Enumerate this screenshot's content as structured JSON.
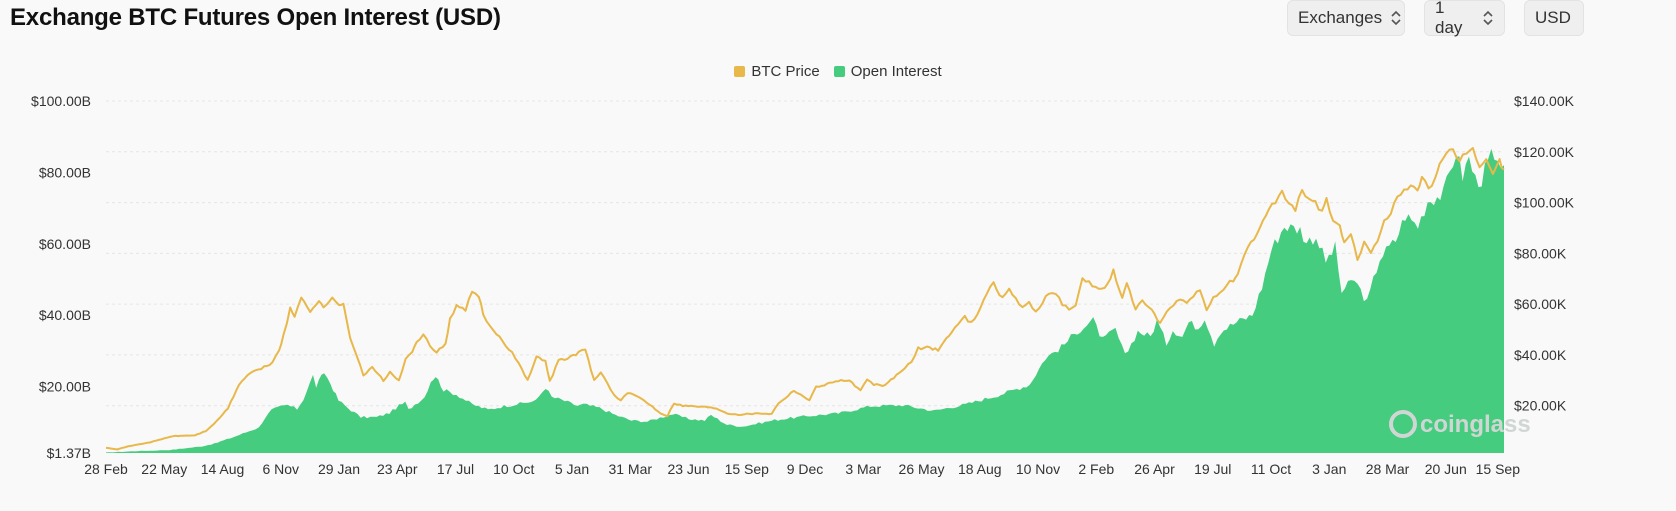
{
  "title": "Exchange BTC Futures Open Interest (USD)",
  "controls": {
    "exchanges_label": "Exchanges",
    "interval_label": "1 day",
    "currency_label": "USD"
  },
  "watermark": "coinglass",
  "colors": {
    "btc_price": "#e8b84a",
    "open_interest": "#45cc7f",
    "background": "#f9f9f9",
    "gridline": "#e6e6e6"
  },
  "icons": {
    "dropdown": "chevron-up-down-icon",
    "watermark": "coinglass-logo-icon"
  },
  "chart_data": {
    "type": "area",
    "title": "Exchange BTC Futures Open Interest (USD)",
    "legend": {
      "placement": "top-center",
      "entries": [
        "BTC Price",
        "Open Interest"
      ]
    },
    "grid": true,
    "x_tick_labels": [
      "28 Feb",
      "22 May",
      "14 Aug",
      "6 Nov",
      "29 Jan",
      "23 Apr",
      "17 Jul",
      "10 Oct",
      "5 Jan",
      "31 Mar",
      "23 Jun",
      "15 Sep",
      "9 Dec",
      "3 Mar",
      "26 May",
      "18 Aug",
      "10 Nov",
      "2 Feb",
      "26 Apr",
      "19 Jul",
      "11 Oct",
      "3 Jan",
      "28 Mar",
      "20 Jun",
      "15 Sep"
    ],
    "y_left": {
      "tick_values": [
        1.37,
        20,
        40,
        60,
        80,
        100
      ],
      "tick_labels": [
        "$1.37B",
        "$20.00B",
        "$40.00B",
        "$60.00B",
        "$80.00B",
        "$100.00B"
      ],
      "range": [
        1.37,
        100
      ]
    },
    "y_right": {
      "tick_values": [
        20,
        40,
        60,
        80,
        100,
        120,
        140
      ],
      "tick_labels": [
        "$20.00K",
        "$40.00K",
        "$60.00K",
        "$80.00K",
        "$100.00K",
        "$120.00K",
        "$140.00K"
      ],
      "range": [
        1.37,
        140
      ]
    },
    "series": [
      {
        "name": "Open Interest",
        "axis": "left",
        "style": "area",
        "points": [
          [
            0,
            1.5
          ],
          [
            1,
            1.9
          ],
          [
            2,
            2.2
          ],
          [
            3,
            3.2
          ],
          [
            3.4,
            4.0
          ],
          [
            4,
            5.8
          ],
          [
            4.5,
            7.5
          ],
          [
            4.8,
            8.5
          ],
          [
            5.0,
            11.3
          ],
          [
            5.2,
            13.4
          ],
          [
            5.5,
            14.4
          ],
          [
            5.7,
            14.8
          ],
          [
            6.0,
            13.7
          ],
          [
            6.2,
            16.5
          ],
          [
            6.5,
            23.0
          ],
          [
            6.6,
            20.0
          ],
          [
            6.85,
            24.0
          ],
          [
            7.05,
            20.8
          ],
          [
            7.3,
            16.1
          ],
          [
            7.6,
            14.0
          ],
          [
            8.0,
            11.4
          ],
          [
            8.5,
            11.4
          ],
          [
            8.9,
            12.6
          ],
          [
            9.2,
            14.6
          ],
          [
            9.4,
            15.5
          ],
          [
            9.5,
            13.5
          ],
          [
            9.7,
            15.0
          ],
          [
            10.0,
            17.0
          ],
          [
            10.2,
            21.5
          ],
          [
            10.35,
            23.0
          ],
          [
            10.6,
            19.0
          ],
          [
            11.0,
            17.8
          ],
          [
            11.5,
            15.0
          ],
          [
            12.0,
            13.5
          ],
          [
            12.5,
            14.5
          ],
          [
            13.0,
            15.2
          ],
          [
            13.5,
            16.0
          ],
          [
            13.8,
            19.8
          ],
          [
            14.0,
            17.0
          ],
          [
            14.3,
            16.3
          ],
          [
            14.8,
            14.6
          ],
          [
            15.0,
            15.0
          ],
          [
            15.5,
            14.0
          ],
          [
            16.0,
            12.0
          ],
          [
            16.5,
            10.5
          ],
          [
            17.0,
            10.2
          ],
          [
            17.8,
            12.3
          ],
          [
            18.3,
            10.9
          ],
          [
            18.8,
            10.5
          ],
          [
            19.0,
            12.0
          ],
          [
            19.5,
            9.3
          ],
          [
            20.0,
            8.8
          ],
          [
            21.0,
            10.6
          ],
          [
            22.0,
            11.7
          ],
          [
            23.0,
            12.5
          ],
          [
            24.0,
            14.5
          ],
          [
            25.0,
            14.8
          ],
          [
            26.0,
            13.2
          ],
          [
            27.0,
            15.0
          ],
          [
            28.0,
            17.5
          ],
          [
            28.5,
            19.0
          ],
          [
            29.0,
            20.5
          ],
          [
            29.5,
            28.0
          ],
          [
            30.0,
            31.0
          ],
          [
            30.5,
            35.5
          ],
          [
            31.0,
            38.5
          ],
          [
            31.3,
            33.0
          ],
          [
            31.7,
            36.0
          ],
          [
            32.0,
            28.5
          ],
          [
            32.4,
            35.5
          ],
          [
            32.8,
            34.0
          ],
          [
            33.0,
            38.5
          ],
          [
            33.3,
            32.0
          ],
          [
            33.5,
            36.0
          ],
          [
            33.8,
            34.0
          ],
          [
            34.0,
            38.0
          ],
          [
            34.3,
            36.5
          ],
          [
            34.5,
            39.5
          ],
          [
            34.8,
            32.0
          ],
          [
            35.0,
            35.5
          ],
          [
            35.5,
            38.0
          ],
          [
            36.0,
            40.0
          ],
          [
            36.3,
            48.0
          ],
          [
            36.6,
            58.5
          ],
          [
            37.0,
            65.0
          ],
          [
            37.5,
            64.0
          ],
          [
            37.7,
            60.5
          ],
          [
            38.0,
            62.0
          ],
          [
            38.3,
            55.0
          ],
          [
            38.6,
            59.0
          ],
          [
            38.8,
            46.5
          ],
          [
            39.2,
            50.0
          ],
          [
            39.6,
            43.5
          ],
          [
            40.0,
            56.0
          ],
          [
            40.5,
            61.0
          ],
          [
            40.8,
            68.0
          ],
          [
            41.2,
            65.0
          ],
          [
            41.5,
            72.0
          ],
          [
            42.0,
            74.0
          ],
          [
            42.4,
            86.0
          ],
          [
            42.6,
            79.0
          ],
          [
            42.8,
            84.0
          ],
          [
            43.0,
            78.0
          ],
          [
            43.2,
            78.0
          ],
          [
            43.5,
            85.0
          ],
          [
            43.8,
            79.0
          ],
          [
            43.9,
            82.0
          ]
        ]
      },
      {
        "name": "BTC Price",
        "axis": "right",
        "style": "line",
        "points": [
          [
            0,
            3.5
          ],
          [
            0.5,
            2.8
          ],
          [
            1,
            4.0
          ],
          [
            2,
            5.6
          ],
          [
            3,
            8.0
          ],
          [
            3.5,
            8.2
          ],
          [
            4,
            8.3
          ],
          [
            4.5,
            10.0
          ],
          [
            5,
            14.0
          ],
          [
            5.5,
            19.0
          ],
          [
            6,
            28.5
          ],
          [
            6.5,
            33.0
          ],
          [
            7,
            34.5
          ],
          [
            7.5,
            37.0
          ],
          [
            7.8,
            42.0
          ],
          [
            8,
            47.5
          ],
          [
            8.3,
            58.0
          ],
          [
            8.5,
            55.0
          ],
          [
            8.8,
            63.0
          ],
          [
            9.2,
            57.5
          ],
          [
            9.6,
            61.0
          ],
          [
            9.8,
            58.5
          ],
          [
            10.2,
            63.0
          ],
          [
            10.5,
            59.0
          ],
          [
            10.7,
            60.0
          ],
          [
            11.0,
            47.0
          ],
          [
            11.3,
            40.0
          ],
          [
            11.6,
            32.0
          ],
          [
            12.0,
            35.0
          ],
          [
            12.5,
            30.0
          ],
          [
            12.8,
            33.0
          ],
          [
            13.2,
            30.0
          ],
          [
            13.5,
            38.0
          ],
          [
            13.8,
            41.0
          ],
          [
            14.0,
            45.0
          ],
          [
            14.3,
            48.5
          ],
          [
            14.6,
            43.0
          ],
          [
            14.9,
            41.0
          ],
          [
            15.3,
            44.5
          ],
          [
            15.5,
            54.0
          ],
          [
            15.8,
            59.0
          ],
          [
            16.2,
            58.0
          ],
          [
            16.5,
            64.5
          ],
          [
            16.8,
            63.0
          ],
          [
            17.0,
            56.0
          ],
          [
            17.3,
            51.0
          ],
          [
            17.6,
            48.5
          ],
          [
            18.0,
            44.0
          ],
          [
            18.3,
            41.0
          ],
          [
            18.6,
            37.0
          ],
          [
            19.0,
            30.0
          ],
          [
            19.4,
            39.0
          ],
          [
            19.8,
            38.0
          ],
          [
            20.0,
            29.5
          ],
          [
            20.4,
            38.0
          ],
          [
            20.8,
            38.5
          ],
          [
            21.3,
            41.0
          ],
          [
            21.6,
            42.0
          ],
          [
            22.0,
            30.0
          ],
          [
            22.3,
            33.0
          ],
          [
            22.6,
            29.0
          ],
          [
            22.9,
            24.0
          ],
          [
            23.2,
            22.0
          ],
          [
            23.5,
            25.0
          ],
          [
            24.0,
            23.5
          ],
          [
            24.5,
            20.5
          ],
          [
            25.0,
            17.0
          ],
          [
            25.3,
            16.0
          ],
          [
            25.6,
            21.0
          ],
          [
            26.0,
            20.0
          ],
          [
            26.5,
            19.8
          ],
          [
            27.0,
            19.5
          ],
          [
            27.5,
            19.0
          ],
          [
            28.0,
            17.0
          ],
          [
            28.5,
            16.5
          ],
          [
            29.0,
            16.8
          ],
          [
            29.5,
            17.0
          ],
          [
            30.0,
            16.8
          ],
          [
            30.3,
            21.0
          ],
          [
            30.6,
            23.0
          ],
          [
            31.0,
            26.0
          ],
          [
            31.3,
            24.5
          ],
          [
            31.7,
            22.0
          ],
          [
            32.0,
            27.5
          ],
          [
            32.5,
            28.5
          ],
          [
            33.0,
            30.0
          ],
          [
            33.5,
            29.8
          ],
          [
            34.0,
            26.0
          ],
          [
            34.3,
            30.0
          ],
          [
            34.6,
            28.5
          ],
          [
            35.0,
            27.5
          ],
          [
            35.5,
            31.0
          ],
          [
            36.0,
            35.0
          ],
          [
            36.3,
            37.0
          ],
          [
            36.6,
            42.5
          ],
          [
            37.0,
            43.0
          ],
          [
            37.5,
            42.0
          ],
          [
            38.0,
            48.0
          ],
          [
            38.4,
            52.0
          ],
          [
            38.7,
            55.0
          ],
          [
            39.0,
            52.5
          ],
          [
            39.4,
            58.5
          ],
          [
            39.7,
            65.0
          ],
          [
            40.0,
            68.0
          ],
          [
            40.4,
            62.0
          ],
          [
            40.7,
            66.5
          ],
          [
            41.0,
            62.0
          ],
          [
            41.3,
            58.5
          ],
          [
            41.6,
            60.5
          ],
          [
            41.9,
            57.0
          ],
          [
            42.2,
            61.0
          ],
          [
            42.5,
            64.0
          ],
          [
            42.8,
            64.5
          ],
          [
            43.1,
            60.0
          ],
          [
            43.4,
            58.5
          ],
          [
            43.7,
            59.0
          ],
          [
            44.0,
            70.0
          ],
          [
            44.3,
            69.0
          ],
          [
            44.6,
            66.0
          ],
          [
            45.0,
            66.0
          ],
          [
            45.4,
            73.0
          ],
          [
            45.8,
            62.0
          ],
          [
            46.0,
            68.0
          ],
          [
            46.4,
            58.0
          ],
          [
            46.7,
            62.0
          ],
          [
            47.0,
            59.0
          ],
          [
            47.5,
            52.0
          ],
          [
            47.8,
            57.0
          ],
          [
            48.1,
            59.5
          ],
          [
            48.4,
            62.0
          ],
          [
            48.7,
            60.0
          ],
          [
            49.0,
            63.5
          ],
          [
            49.3,
            65.0
          ],
          [
            49.6,
            57.5
          ],
          [
            49.9,
            63.0
          ],
          [
            50.2,
            64.5
          ],
          [
            50.5,
            68.0
          ],
          [
            50.8,
            69.0
          ],
          [
            51.0,
            71.0
          ],
          [
            51.3,
            79.0
          ],
          [
            51.6,
            84.0
          ],
          [
            52.0,
            90.0
          ],
          [
            52.4,
            97.0
          ],
          [
            52.7,
            101.0
          ],
          [
            53.0,
            104.5
          ],
          [
            53.3,
            100.0
          ],
          [
            53.6,
            97.0
          ],
          [
            53.9,
            105.0
          ],
          [
            54.2,
            102.0
          ],
          [
            54.5,
            100.0
          ],
          [
            54.8,
            96.0
          ],
          [
            55.0,
            101.0
          ],
          [
            55.3,
            93.0
          ],
          [
            55.6,
            90.0
          ],
          [
            55.8,
            85.0
          ],
          [
            56.1,
            87.0
          ],
          [
            56.4,
            78.0
          ],
          [
            56.7,
            84.0
          ],
          [
            57.0,
            81.0
          ],
          [
            57.3,
            84.0
          ],
          [
            57.6,
            92.0
          ],
          [
            57.9,
            95.0
          ],
          [
            58.2,
            103.0
          ],
          [
            58.5,
            104.0
          ],
          [
            58.8,
            108.0
          ],
          [
            59.1,
            104.0
          ],
          [
            59.3,
            111.0
          ],
          [
            59.6,
            106.0
          ],
          [
            59.9,
            109.0
          ],
          [
            60.1,
            114.0
          ],
          [
            60.4,
            118.0
          ],
          [
            60.7,
            121.0
          ],
          [
            61.0,
            116.0
          ],
          [
            61.3,
            120.0
          ],
          [
            61.6,
            122.0
          ],
          [
            61.9,
            114.0
          ],
          [
            62.2,
            117.0
          ],
          [
            62.5,
            111.0
          ],
          [
            62.8,
            116.0
          ],
          [
            63.0,
            113.0
          ]
        ]
      }
    ]
  }
}
